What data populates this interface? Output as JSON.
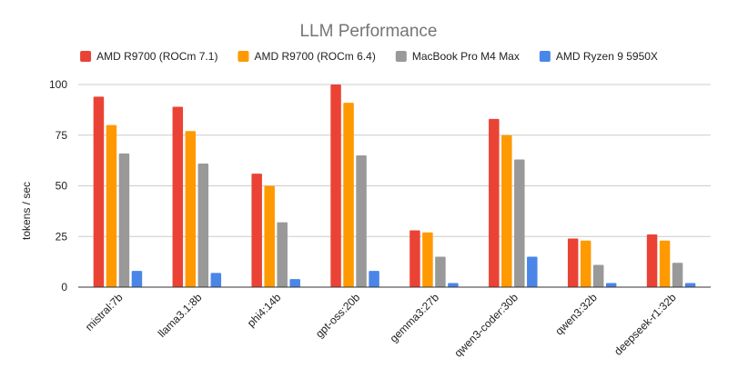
{
  "chart_data": {
    "type": "bar",
    "title": "LLM Performance",
    "xlabel": "",
    "ylabel": "tokens / sec",
    "ylim": [
      0,
      100
    ],
    "yticks": [
      0,
      25,
      50,
      75,
      100
    ],
    "grid": true,
    "legend_position": "top",
    "categories": [
      "mistral:7b",
      "llama3.1:8b",
      "phi4:14b",
      "gpt-oss:20b",
      "gemma3:27b",
      "qwen3-coder:30b",
      "qwen3:32b",
      "deepseek-r1:32b"
    ],
    "series": [
      {
        "name": "AMD R9700 (ROCm 7.1)",
        "color": "#ea4335",
        "values": [
          94,
          89,
          56,
          100,
          28,
          83,
          24,
          26
        ]
      },
      {
        "name": "AMD R9700 (ROCm 6.4)",
        "color": "#ff9900",
        "values": [
          80,
          77,
          50,
          91,
          27,
          75,
          23,
          23
        ]
      },
      {
        "name": "MacBook Pro M4 Max",
        "color": "#999999",
        "values": [
          66,
          61,
          32,
          65,
          15,
          63,
          11,
          12
        ]
      },
      {
        "name": "AMD Ryzen 9 5950X",
        "color": "#4a86e8",
        "values": [
          8,
          7,
          4,
          8,
          2,
          15,
          2,
          2
        ]
      }
    ]
  }
}
